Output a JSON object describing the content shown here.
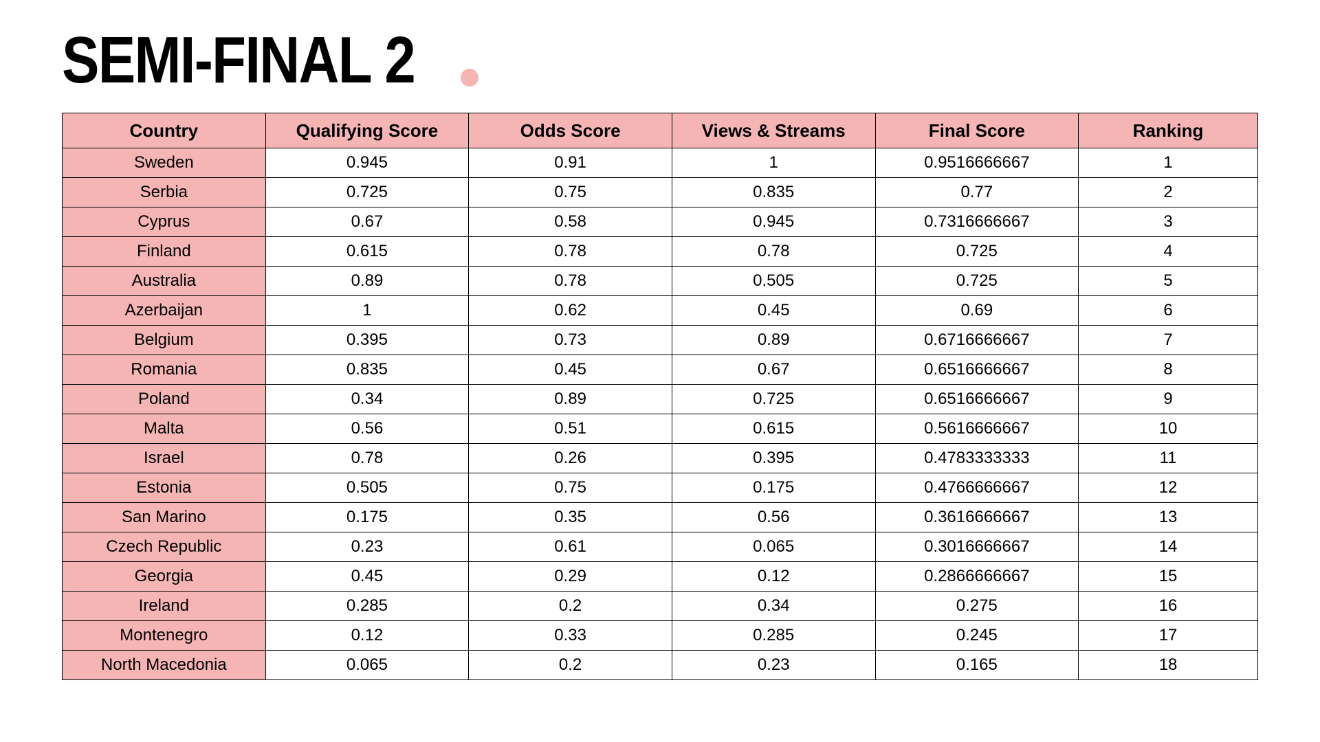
{
  "title": "SEMI-FINAL 2",
  "accent_color": "#f5b5b5",
  "table": {
    "type": "table",
    "header_bg": "#f5b5b5",
    "country_col_bg": "#f5b5b5",
    "cell_bg": "#ffffff",
    "border_color": "#000000",
    "header_fontsize": 26,
    "cell_fontsize": 24,
    "columns": [
      {
        "key": "country",
        "label": "Country",
        "width_pct": 17,
        "align": "center"
      },
      {
        "key": "qualifying",
        "label": "Qualifying Score",
        "width_pct": 17,
        "align": "center"
      },
      {
        "key": "odds",
        "label": "Odds Score",
        "width_pct": 17,
        "align": "center"
      },
      {
        "key": "views",
        "label": "Views & Streams",
        "width_pct": 17,
        "align": "center"
      },
      {
        "key": "final",
        "label": "Final Score",
        "width_pct": 17,
        "align": "center"
      },
      {
        "key": "ranking",
        "label": "Ranking",
        "width_pct": 15,
        "align": "center"
      }
    ],
    "rows": [
      {
        "country": "Sweden",
        "qualifying": "0.945",
        "odds": "0.91",
        "views": "1",
        "final": "0.9516666667",
        "ranking": "1"
      },
      {
        "country": "Serbia",
        "qualifying": "0.725",
        "odds": "0.75",
        "views": "0.835",
        "final": "0.77",
        "ranking": "2"
      },
      {
        "country": "Cyprus",
        "qualifying": "0.67",
        "odds": "0.58",
        "views": "0.945",
        "final": "0.7316666667",
        "ranking": "3"
      },
      {
        "country": "Finland",
        "qualifying": "0.615",
        "odds": "0.78",
        "views": "0.78",
        "final": "0.725",
        "ranking": "4"
      },
      {
        "country": "Australia",
        "qualifying": "0.89",
        "odds": "0.78",
        "views": "0.505",
        "final": "0.725",
        "ranking": "5"
      },
      {
        "country": "Azerbaijan",
        "qualifying": "1",
        "odds": "0.62",
        "views": "0.45",
        "final": "0.69",
        "ranking": "6"
      },
      {
        "country": "Belgium",
        "qualifying": "0.395",
        "odds": "0.73",
        "views": "0.89",
        "final": "0.6716666667",
        "ranking": "7"
      },
      {
        "country": "Romania",
        "qualifying": "0.835",
        "odds": "0.45",
        "views": "0.67",
        "final": "0.6516666667",
        "ranking": "8"
      },
      {
        "country": "Poland",
        "qualifying": "0.34",
        "odds": "0.89",
        "views": "0.725",
        "final": "0.6516666667",
        "ranking": "9"
      },
      {
        "country": "Malta",
        "qualifying": "0.56",
        "odds": "0.51",
        "views": "0.615",
        "final": "0.5616666667",
        "ranking": "10"
      },
      {
        "country": "Israel",
        "qualifying": "0.78",
        "odds": "0.26",
        "views": "0.395",
        "final": "0.4783333333",
        "ranking": "11"
      },
      {
        "country": "Estonia",
        "qualifying": "0.505",
        "odds": "0.75",
        "views": "0.175",
        "final": "0.4766666667",
        "ranking": "12"
      },
      {
        "country": "San Marino",
        "qualifying": "0.175",
        "odds": "0.35",
        "views": "0.56",
        "final": "0.3616666667",
        "ranking": "13"
      },
      {
        "country": "Czech Republic",
        "qualifying": "0.23",
        "odds": "0.61",
        "views": "0.065",
        "final": "0.3016666667",
        "ranking": "14"
      },
      {
        "country": "Georgia",
        "qualifying": "0.45",
        "odds": "0.29",
        "views": "0.12",
        "final": "0.2866666667",
        "ranking": "15"
      },
      {
        "country": "Ireland",
        "qualifying": "0.285",
        "odds": "0.2",
        "views": "0.34",
        "final": "0.275",
        "ranking": "16"
      },
      {
        "country": "Montenegro",
        "qualifying": "0.12",
        "odds": "0.33",
        "views": "0.285",
        "final": "0.245",
        "ranking": "17"
      },
      {
        "country": "North Macedonia",
        "qualifying": "0.065",
        "odds": "0.2",
        "views": "0.23",
        "final": "0.165",
        "ranking": "18"
      }
    ]
  }
}
